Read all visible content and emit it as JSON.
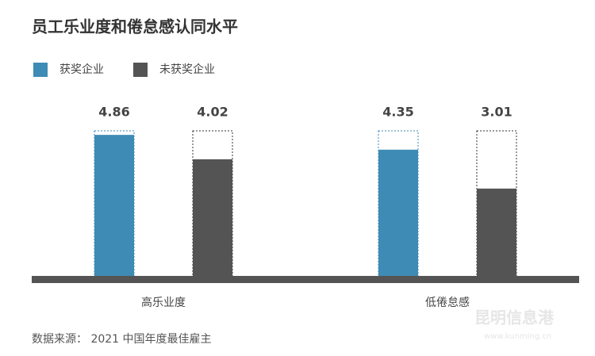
{
  "chart_data": {
    "type": "bar",
    "title": "员工乐业度和倦怠感认同水平",
    "categories": [
      "高乐业度",
      "低倦怠感"
    ],
    "series": [
      {
        "name": "获奖企业",
        "color": "#3e8bb5",
        "values": [
          4.86,
          4.35
        ]
      },
      {
        "name": "未获奖企业",
        "color": "#545454",
        "values": [
          4.02,
          3.01
        ]
      }
    ],
    "ylim": [
      0,
      5
    ],
    "source": "数据来源： 2021 中国年度最佳雇主",
    "watermark": "昆明信息港",
    "watermark_url": "www.kunming.cn"
  }
}
